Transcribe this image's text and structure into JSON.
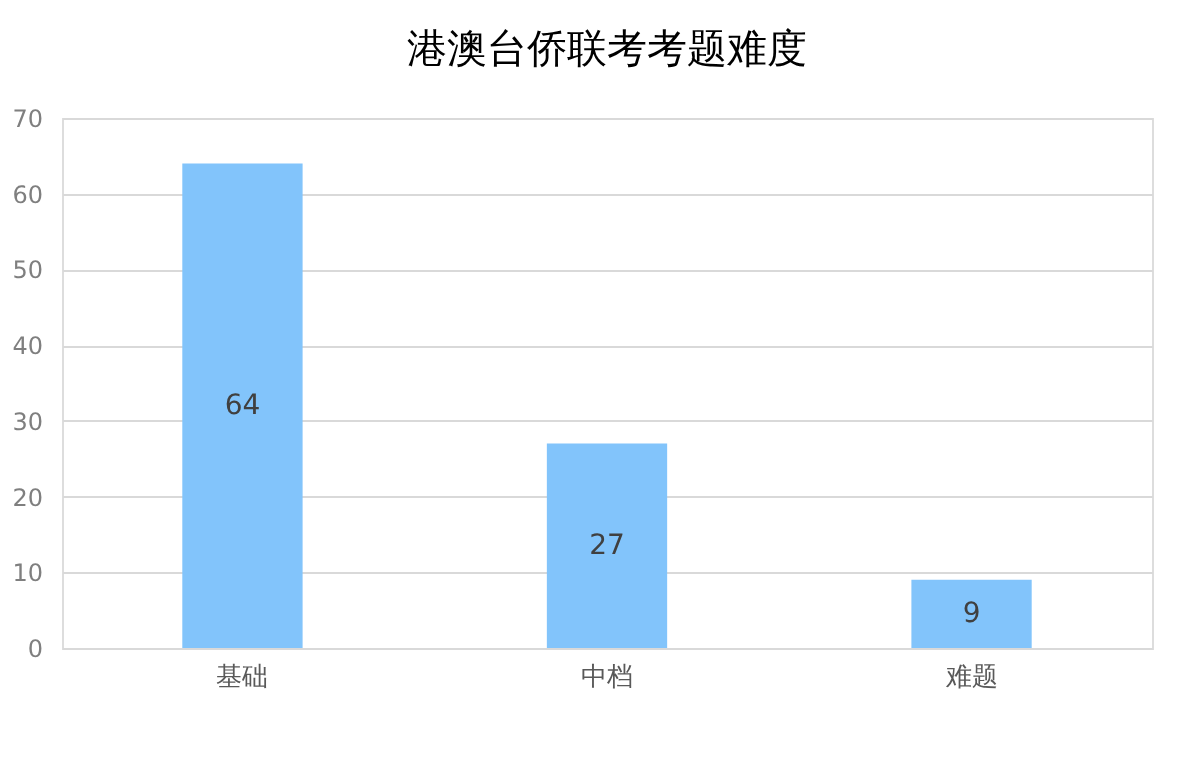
{
  "chart_data": {
    "type": "bar",
    "title": "港澳台侨联考考题难度",
    "categories": [
      "基础",
      "中档",
      "难题"
    ],
    "values": [
      64,
      27,
      9
    ],
    "color": "#82c4fb",
    "ylim": [
      0,
      70
    ],
    "yticks": [
      0,
      10,
      20,
      30,
      40,
      50,
      60,
      70
    ],
    "grid": "y",
    "data_labels": true
  }
}
